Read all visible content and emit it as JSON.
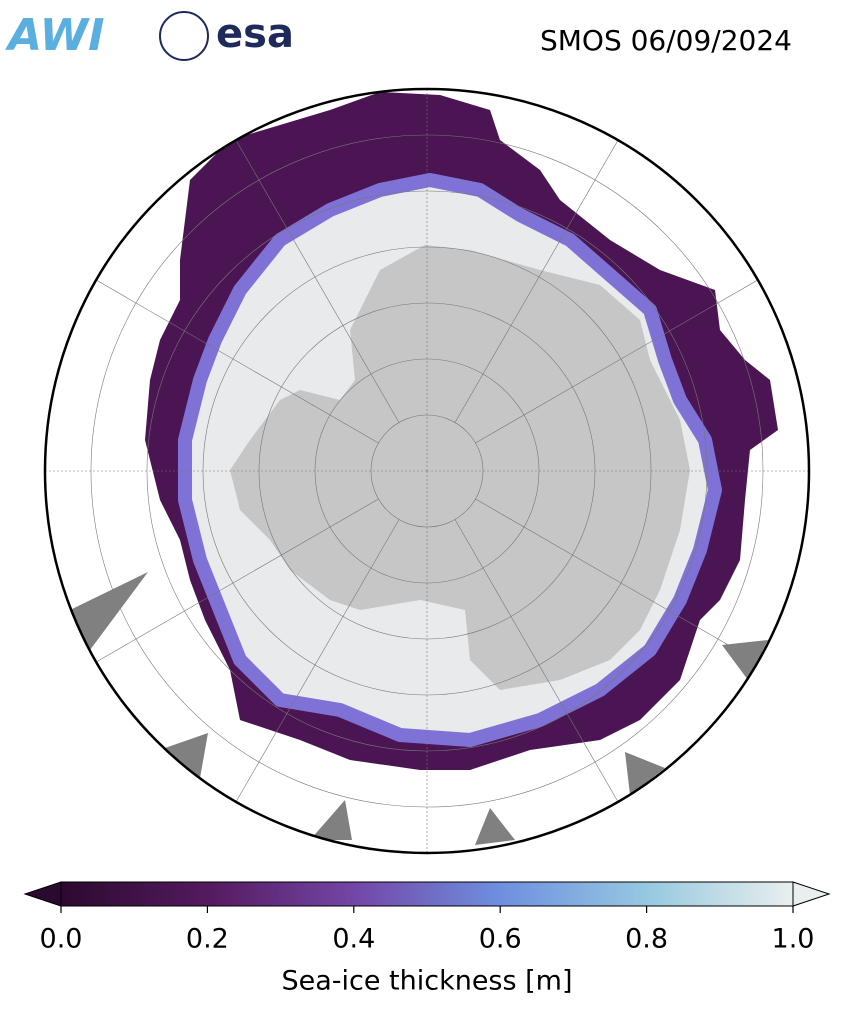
{
  "header": {
    "logos": [
      "AWI",
      "esa"
    ],
    "title": "SMOS 06/09/2024"
  },
  "colorbar": {
    "label": "Sea-ice thickness [m]",
    "lim": [
      0,
      1
    ],
    "ticks": [
      {
        "value": 0,
        "label": "0.0"
      },
      0.2,
      0.4,
      0.6,
      {
        "value": 0.8,
        "label": "0.8"
      },
      {
        "value": 1,
        "label": "1.0"
      }
    ],
    "colors": [
      "#2b0a2f",
      "#541a5e",
      "#7346a6",
      "#6e8fe0",
      "#96c8e0",
      "#e9efee"
    ],
    "extend": "both"
  }
}
